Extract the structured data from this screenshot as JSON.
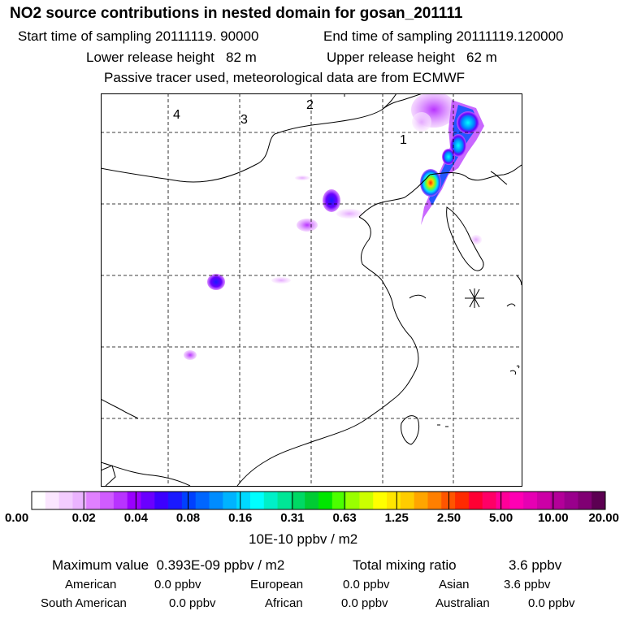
{
  "header": {
    "title": "NO2 source contributions in nested domain for gosan_201111",
    "start_time": "Start time of sampling 20111119. 90000",
    "end_time": "End time of sampling 20111119.120000",
    "lower_height": "Lower release height   82 m",
    "upper_height": "Upper release height   62 m",
    "note": "Passive tracer used, meteorological data are from ECMWF"
  },
  "map": {
    "region_labels": [
      "1",
      "2",
      "3",
      "4"
    ],
    "receptor": "gosan"
  },
  "colorbar": {
    "ticks": [
      "0.00",
      "0.02",
      "0.04",
      "0.08",
      "0.16",
      "0.31",
      "0.63",
      "1.25",
      "2.50",
      "5.00",
      "10.00",
      "20.00"
    ],
    "unit": "10E-10 ppbv / m2",
    "colors": [
      "#ffffff",
      "#fbe6ff",
      "#f3ccff",
      "#ebb3ff",
      "#e080ff",
      "#d05cff",
      "#b833ff",
      "#9a00ff",
      "#6a00ff",
      "#3c00ff",
      "#1a1aff",
      "#0040ff",
      "#0066ff",
      "#008cff",
      "#00b3ff",
      "#00d9ff",
      "#00ffff",
      "#00f0c8",
      "#00e696",
      "#00d964",
      "#00cc33",
      "#00e600",
      "#4cff00",
      "#99ff00",
      "#ccff00",
      "#ffff00",
      "#ffe600",
      "#ffcc00",
      "#ffa500",
      "#ff7f00",
      "#ff5500",
      "#ff2a00",
      "#ff0033",
      "#ff0066",
      "#ff0099",
      "#ff00b3",
      "#e600b3",
      "#cc00a6",
      "#b30099",
      "#99008c",
      "#800073",
      "#5c0052"
    ]
  },
  "summary": {
    "max_value": "Maximum value  0.393E-09 ppbv / m2",
    "total_label": "Total mixing ratio",
    "total_value": "3.6 ppbv",
    "regions": [
      {
        "name": "American",
        "value": "0.0 ppbv"
      },
      {
        "name": "European",
        "value": "0.0 ppbv"
      },
      {
        "name": "Asian",
        "value": "3.6 ppbv"
      },
      {
        "name": "South American",
        "value": "0.0 ppbv"
      },
      {
        "name": "African",
        "value": "0.0 ppbv"
      },
      {
        "name": "Australian",
        "value": "0.0 ppbv"
      }
    ]
  }
}
